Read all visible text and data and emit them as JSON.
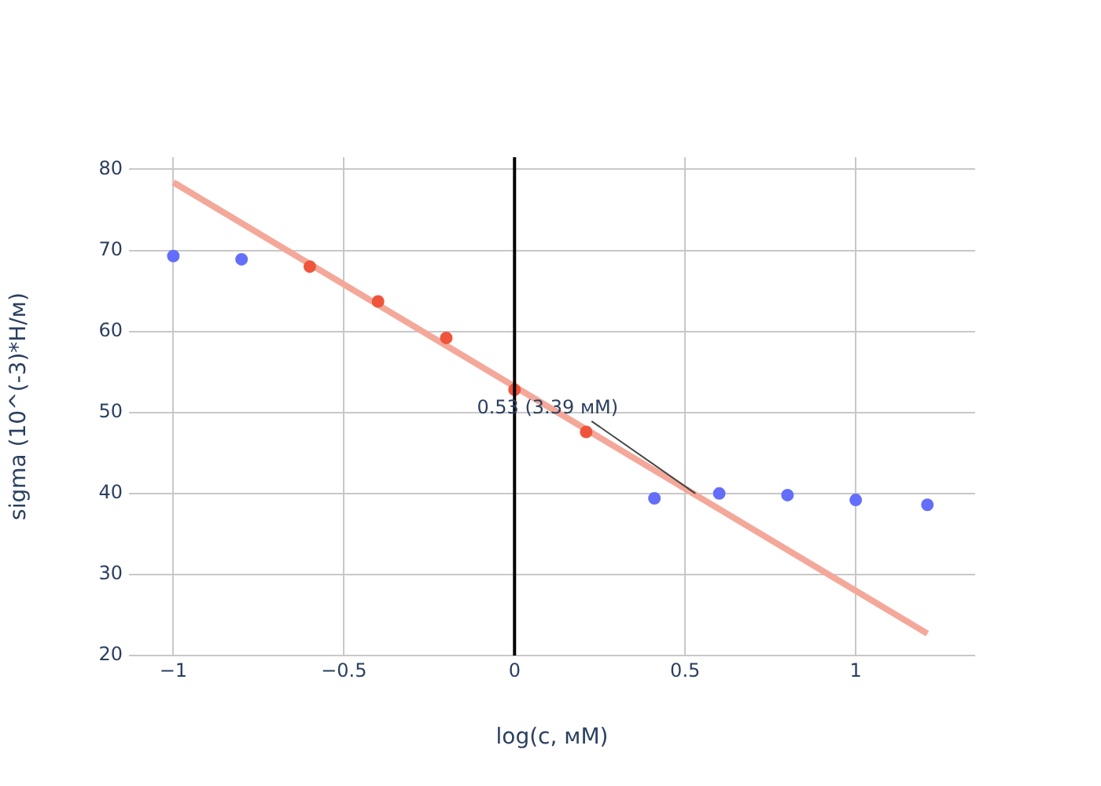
{
  "chart_data": {
    "type": "scatter",
    "xlabel": "log(c, мМ)",
    "ylabel": "sigma (10^(-3)*Н/м)",
    "xlim": [
      -1.13,
      1.35
    ],
    "ylim": [
      20,
      81.5
    ],
    "xticks": [
      {
        "value": -1,
        "label": "−1"
      },
      {
        "value": -0.5,
        "label": "−0.5"
      },
      0,
      0.5,
      1
    ],
    "yticks": [
      20,
      30,
      40,
      50,
      60,
      70,
      80
    ],
    "grid": true,
    "legend": false,
    "marker": "circle",
    "series": [
      {
        "color": "#636efa",
        "x": [
          -1,
          -0.8,
          0.41,
          0.6,
          0.8,
          1,
          1.21
        ],
        "values": [
          69.3,
          68.9,
          39.4,
          40,
          39.8,
          39.2,
          38.6
        ]
      },
      {
        "color": "#ef553b",
        "x": [
          -0.6,
          -0.4,
          -0.2,
          0,
          0.21
        ],
        "values": [
          68,
          63.7,
          59.2,
          52.8,
          47.6
        ]
      },
      {
        "type": "line",
        "marker": "none",
        "color": "#f4a89a",
        "x": [
          -1,
          1.21
        ],
        "values": [
          78.4,
          22.7
        ]
      }
    ],
    "ref_lines": [
      {
        "axis": "x",
        "value": 0,
        "color": "#000000"
      }
    ],
    "annotations": [
      {
        "text": "0.53 (3.39 мМ)",
        "x": 0.53,
        "y": 40
      }
    ]
  }
}
